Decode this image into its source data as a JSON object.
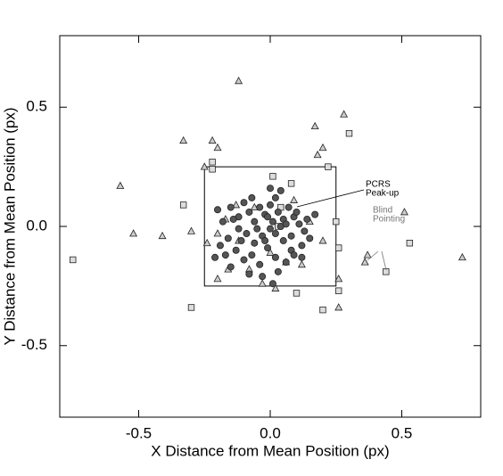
{
  "chart_data": {
    "type": "scatter",
    "xlabel": "X Distance from Mean Position (px)",
    "ylabel": "Y Distance from Mean Position (px)",
    "xlim": [
      -0.8,
      0.8
    ],
    "ylim": [
      -0.8,
      0.8
    ],
    "xticks": [
      -0.5,
      {
        "value": 0,
        "label": "0.0"
      },
      0.5
    ],
    "yticks": [
      -0.5,
      {
        "value": 0,
        "label": "0.0"
      },
      0.5
    ],
    "box": {
      "xlim": [
        -0.25,
        0.25
      ],
      "ylim": [
        -0.25,
        0.25
      ]
    },
    "annotations": [
      {
        "lines": [
          "PCRS",
          "Peak-up"
        ],
        "color": "#000000"
      },
      {
        "lines": [
          "Blind",
          "Pointing"
        ],
        "color": "#777777"
      }
    ],
    "series": [
      {
        "marker": "triangle",
        "color": "#cccccc",
        "x": [
          -0.12,
          -0.33,
          -0.22,
          -0.2,
          -0.25,
          -0.57,
          0.28,
          0.17,
          0.2,
          0.18,
          -0.52,
          -0.41,
          -0.3,
          -0.24,
          0.73,
          0.51,
          0.36,
          0.37,
          0.26,
          0.26,
          -0.2,
          -0.03,
          0.02,
          -0.13,
          -0.17,
          -0.06,
          0.09,
          0.15,
          0.2,
          -0.12,
          -0.2,
          0.06,
          0.12,
          -0.08,
          0.0,
          -0.16
        ],
        "y": [
          0.61,
          0.36,
          0.36,
          0.33,
          0.25,
          0.17,
          0.47,
          0.42,
          0.33,
          0.3,
          -0.03,
          -0.04,
          -0.02,
          -0.07,
          -0.13,
          0.06,
          -0.15,
          -0.12,
          -0.22,
          -0.34,
          -0.22,
          -0.24,
          -0.26,
          0.09,
          0.03,
          0.08,
          0.11,
          0.02,
          -0.06,
          -0.06,
          -0.03,
          -0.15,
          -0.16,
          -0.18,
          -0.11,
          -0.18
        ]
      },
      {
        "marker": "square",
        "color": "#dddddd",
        "x": [
          -0.75,
          -0.22,
          -0.22,
          -0.33,
          -0.3,
          0.01,
          0.08,
          0.3,
          0.22,
          0.25,
          0.26,
          0.44,
          0.53,
          0.26,
          0.2,
          0.1,
          0.03,
          0.04
        ],
        "y": [
          -0.14,
          0.27,
          0.24,
          0.09,
          -0.34,
          0.21,
          0.18,
          0.39,
          0.25,
          0.02,
          -0.09,
          -0.19,
          -0.07,
          -0.27,
          -0.35,
          -0.28,
          0.0,
          0.08
        ]
      },
      {
        "marker": "circle",
        "color": "#555555",
        "x": [
          -0.2,
          -0.15,
          -0.12,
          -0.1,
          -0.08,
          -0.06,
          -0.04,
          -0.02,
          0.0,
          0.02,
          0.03,
          0.05,
          0.07,
          0.09,
          0.11,
          0.13,
          0.15,
          0.12,
          0.08,
          0.05,
          0.02,
          0.0,
          -0.03,
          -0.06,
          -0.09,
          -0.12,
          -0.16,
          -0.19,
          -0.21,
          -0.17,
          -0.13,
          -0.1,
          -0.07,
          -0.04,
          -0.01,
          0.02,
          0.06,
          0.09,
          0.03,
          -0.03,
          -0.08,
          -0.05,
          0.01,
          0.04,
          -0.01,
          0.06,
          0.1,
          -0.14,
          -0.18,
          -0.11,
          0.14,
          0.17,
          0.04,
          -0.07,
          0.0,
          -0.02,
          0.08,
          0.12,
          -0.15,
          0.01
        ],
        "y": [
          0.07,
          0.08,
          0.04,
          0.1,
          0.06,
          0.02,
          0.08,
          0.05,
          0.09,
          0.12,
          0.06,
          0.03,
          0.08,
          0.04,
          0.01,
          -0.02,
          -0.05,
          -0.08,
          -0.1,
          -0.06,
          -0.03,
          -0.01,
          -0.04,
          -0.07,
          -0.03,
          -0.01,
          -0.05,
          -0.08,
          -0.13,
          -0.12,
          -0.1,
          -0.14,
          -0.12,
          -0.16,
          -0.09,
          -0.13,
          -0.15,
          -0.12,
          -0.19,
          -0.21,
          -0.2,
          -0.01,
          0.02,
          0.0,
          0.04,
          0.01,
          0.06,
          0.03,
          0.02,
          -0.06,
          0.03,
          0.05,
          0.15,
          0.12,
          0.16,
          -0.06,
          -0.04,
          -0.13,
          -0.17,
          -0.24
        ]
      }
    ]
  }
}
